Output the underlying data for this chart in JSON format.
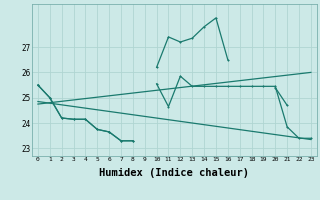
{
  "xlabel": "Humidex (Indice chaleur)",
  "x": [
    0,
    1,
    2,
    3,
    4,
    5,
    6,
    7,
    8,
    9,
    10,
    11,
    12,
    13,
    14,
    15,
    16,
    17,
    18,
    19,
    20,
    21,
    22,
    23
  ],
  "line_max": [
    25.5,
    25.0,
    24.2,
    24.15,
    24.15,
    23.75,
    23.65,
    23.3,
    23.3,
    null,
    26.2,
    27.4,
    27.2,
    27.35,
    27.8,
    28.15,
    26.5,
    null,
    null,
    null,
    25.4,
    24.7,
    null,
    null
  ],
  "line_mid": [
    25.5,
    25.0,
    24.2,
    24.15,
    24.15,
    23.75,
    23.65,
    23.3,
    23.3,
    null,
    25.55,
    24.65,
    25.85,
    25.45,
    25.45,
    25.45,
    25.45,
    25.45,
    25.45,
    25.45,
    25.45,
    23.85,
    23.4,
    23.4
  ],
  "trend1_x": [
    0,
    23
  ],
  "trend1_y": [
    24.75,
    26.0
  ],
  "trend2_x": [
    0,
    23
  ],
  "trend2_y": [
    24.85,
    23.35
  ],
  "ylim": [
    22.7,
    28.7
  ],
  "yticks": [
    23,
    24,
    25,
    26,
    27
  ],
  "xticks": [
    0,
    1,
    2,
    3,
    4,
    5,
    6,
    7,
    8,
    9,
    10,
    11,
    12,
    13,
    14,
    15,
    16,
    17,
    18,
    19,
    20,
    21,
    22,
    23
  ],
  "bg_color": "#cce9e7",
  "line_color": "#1a7a6e",
  "grid_color": "#b0d5d2",
  "lw": 0.9,
  "ms": 2.0
}
